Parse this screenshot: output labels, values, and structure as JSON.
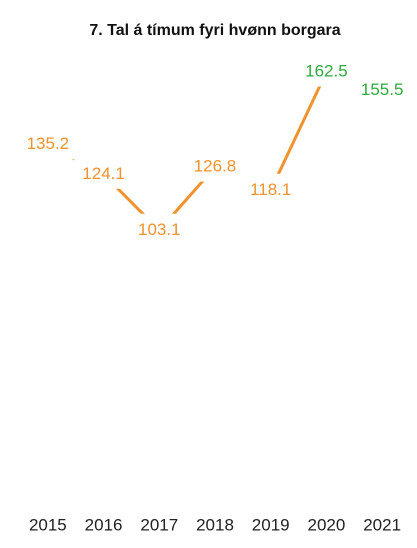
{
  "chart_data": {
    "type": "line",
    "title": "7. Tal á tímum fyri hvønn borgara",
    "categories": [
      "2015",
      "2016",
      "2017",
      "2018",
      "2019",
      "2020",
      "2021"
    ],
    "values": [
      135.2,
      124.1,
      103.1,
      126.8,
      118.1,
      162.5,
      155.5
    ],
    "color": "#f0922e",
    "label_colors": [
      "#f0922e",
      "#f0922e",
      "#f0922e",
      "#f0922e",
      "#f0922e",
      "#2eaa3e",
      "#2eaa3e"
    ],
    "ylim": [
      0,
      170
    ]
  }
}
